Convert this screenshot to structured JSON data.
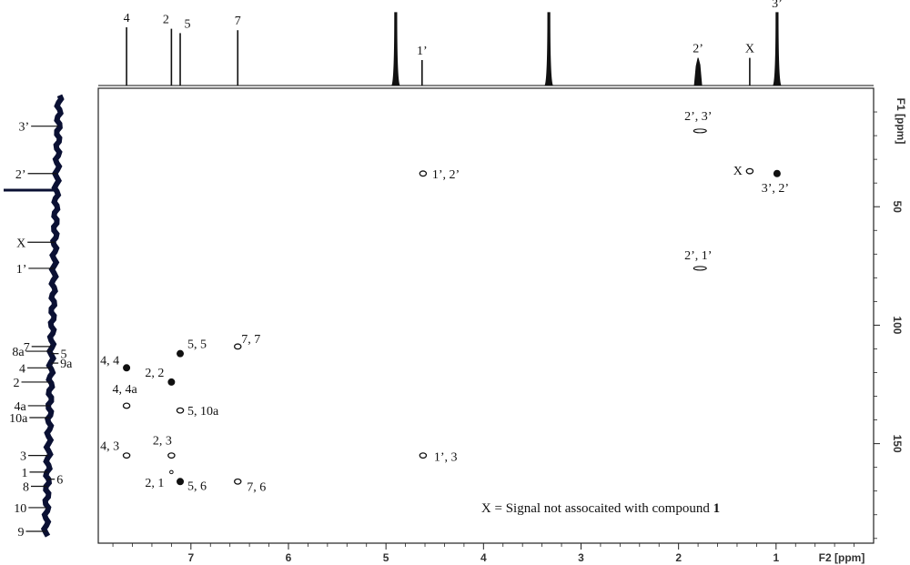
{
  "chart_data": {
    "type": "scatter",
    "subtype": "2D NMR HMBC contour plot",
    "x_axis": {
      "label": "F2 [ppm]",
      "range": [
        7.95,
        0.0
      ],
      "ticks": [
        "7",
        "6",
        "5",
        "4",
        "3",
        "2",
        "1"
      ],
      "tick_values": [
        7,
        6,
        5,
        4,
        3,
        2,
        1
      ]
    },
    "y_axis": {
      "label": "F1 [ppm]",
      "range": [
        0,
        192
      ],
      "ticks": [
        "50",
        "100",
        "150"
      ],
      "tick_values": [
        50,
        100,
        150
      ]
    },
    "proton_peaks": [
      {
        "label": "4",
        "ppm": 7.66,
        "height": 0.8
      },
      {
        "label": "2",
        "ppm": 7.2,
        "height": 0.78
      },
      {
        "label": "5",
        "ppm": 7.11,
        "height": 0.72
      },
      {
        "label": "7",
        "ppm": 6.52,
        "height": 0.76
      },
      {
        "label": "",
        "ppm": 4.9,
        "height": 1.0
      },
      {
        "label": "1’",
        "ppm": 4.63,
        "height": 0.35
      },
      {
        "label": "",
        "ppm": 3.33,
        "height": 1.0
      },
      {
        "label": "2’",
        "ppm": 1.8,
        "height": 0.38
      },
      {
        "label": "X",
        "ppm": 1.27,
        "height": 0.38
      },
      {
        "label": "3’",
        "ppm": 0.99,
        "height": 1.0
      }
    ],
    "carbon_peaks": [
      {
        "label": "3’",
        "ppm": 16,
        "len": 30
      },
      {
        "label": "2’",
        "ppm": 36,
        "len": 32
      },
      {
        "label": "X",
        "ppm": 65,
        "len": 30
      },
      {
        "label": "1’",
        "ppm": 76,
        "len": 28
      },
      {
        "label": "7",
        "ppm": 109,
        "len": 22
      },
      {
        "label": "8a",
        "ppm": 111,
        "len": 28
      },
      {
        "label": "5",
        "ppm": 112,
        "len": 12
      },
      {
        "label": "9a",
        "ppm": 116,
        "len": 12
      },
      {
        "label": "4",
        "ppm": 118,
        "len": 26
      },
      {
        "label": "2",
        "ppm": 124,
        "len": 32
      },
      {
        "label": "4a",
        "ppm": 134,
        "len": 24
      },
      {
        "label": "10a",
        "ppm": 139,
        "len": 22
      },
      {
        "label": "3",
        "ppm": 155,
        "len": 22
      },
      {
        "label": "1",
        "ppm": 162,
        "len": 20
      },
      {
        "label": "6",
        "ppm": 165,
        "len": 12
      },
      {
        "label": "8",
        "ppm": 168,
        "len": 18
      },
      {
        "label": "10",
        "ppm": 177,
        "len": 20
      },
      {
        "label": "9",
        "ppm": 187,
        "len": 22
      }
    ],
    "cross_peaks": [
      {
        "label": "2’, 3’",
        "h": 1.78,
        "c": 18,
        "shape": "elongated"
      },
      {
        "label": "1’, 2’",
        "h": 4.62,
        "c": 36,
        "shape": "ring"
      },
      {
        "label": "X",
        "h": 1.27,
        "c": 35,
        "shape": "ring"
      },
      {
        "label": "3’, 2’",
        "h": 0.99,
        "c": 36,
        "shape": "filled"
      },
      {
        "label": "2’, 1’",
        "h": 1.78,
        "c": 76,
        "shape": "elongated"
      },
      {
        "label": "5, 5",
        "h": 7.11,
        "c": 112,
        "shape": "filled"
      },
      {
        "label": "7, 7",
        "h": 6.52,
        "c": 109,
        "shape": "ring"
      },
      {
        "label": "4, 4",
        "h": 7.66,
        "c": 118,
        "shape": "filled"
      },
      {
        "label": "2, 2",
        "h": 7.2,
        "c": 124,
        "shape": "filled"
      },
      {
        "label": "4, 4a",
        "h": 7.66,
        "c": 134,
        "shape": "ring"
      },
      {
        "label": "5, 10a",
        "h": 7.11,
        "c": 136,
        "shape": "ring"
      },
      {
        "label": "4, 3",
        "h": 7.66,
        "c": 155,
        "shape": "ring"
      },
      {
        "label": "2, 3",
        "h": 7.2,
        "c": 155,
        "shape": "ring"
      },
      {
        "label": "1’, 3",
        "h": 4.62,
        "c": 155,
        "shape": "ring"
      },
      {
        "label": "2, 1",
        "h": 7.2,
        "c": 162,
        "shape": "small"
      },
      {
        "label": "5, 6",
        "h": 7.11,
        "c": 166,
        "shape": "filled"
      },
      {
        "label": "7, 6",
        "h": 6.52,
        "c": 166,
        "shape": "ring"
      }
    ],
    "annotation": {
      "prefix": "X = Signal not assocaited with compound ",
      "bold": "1"
    }
  }
}
